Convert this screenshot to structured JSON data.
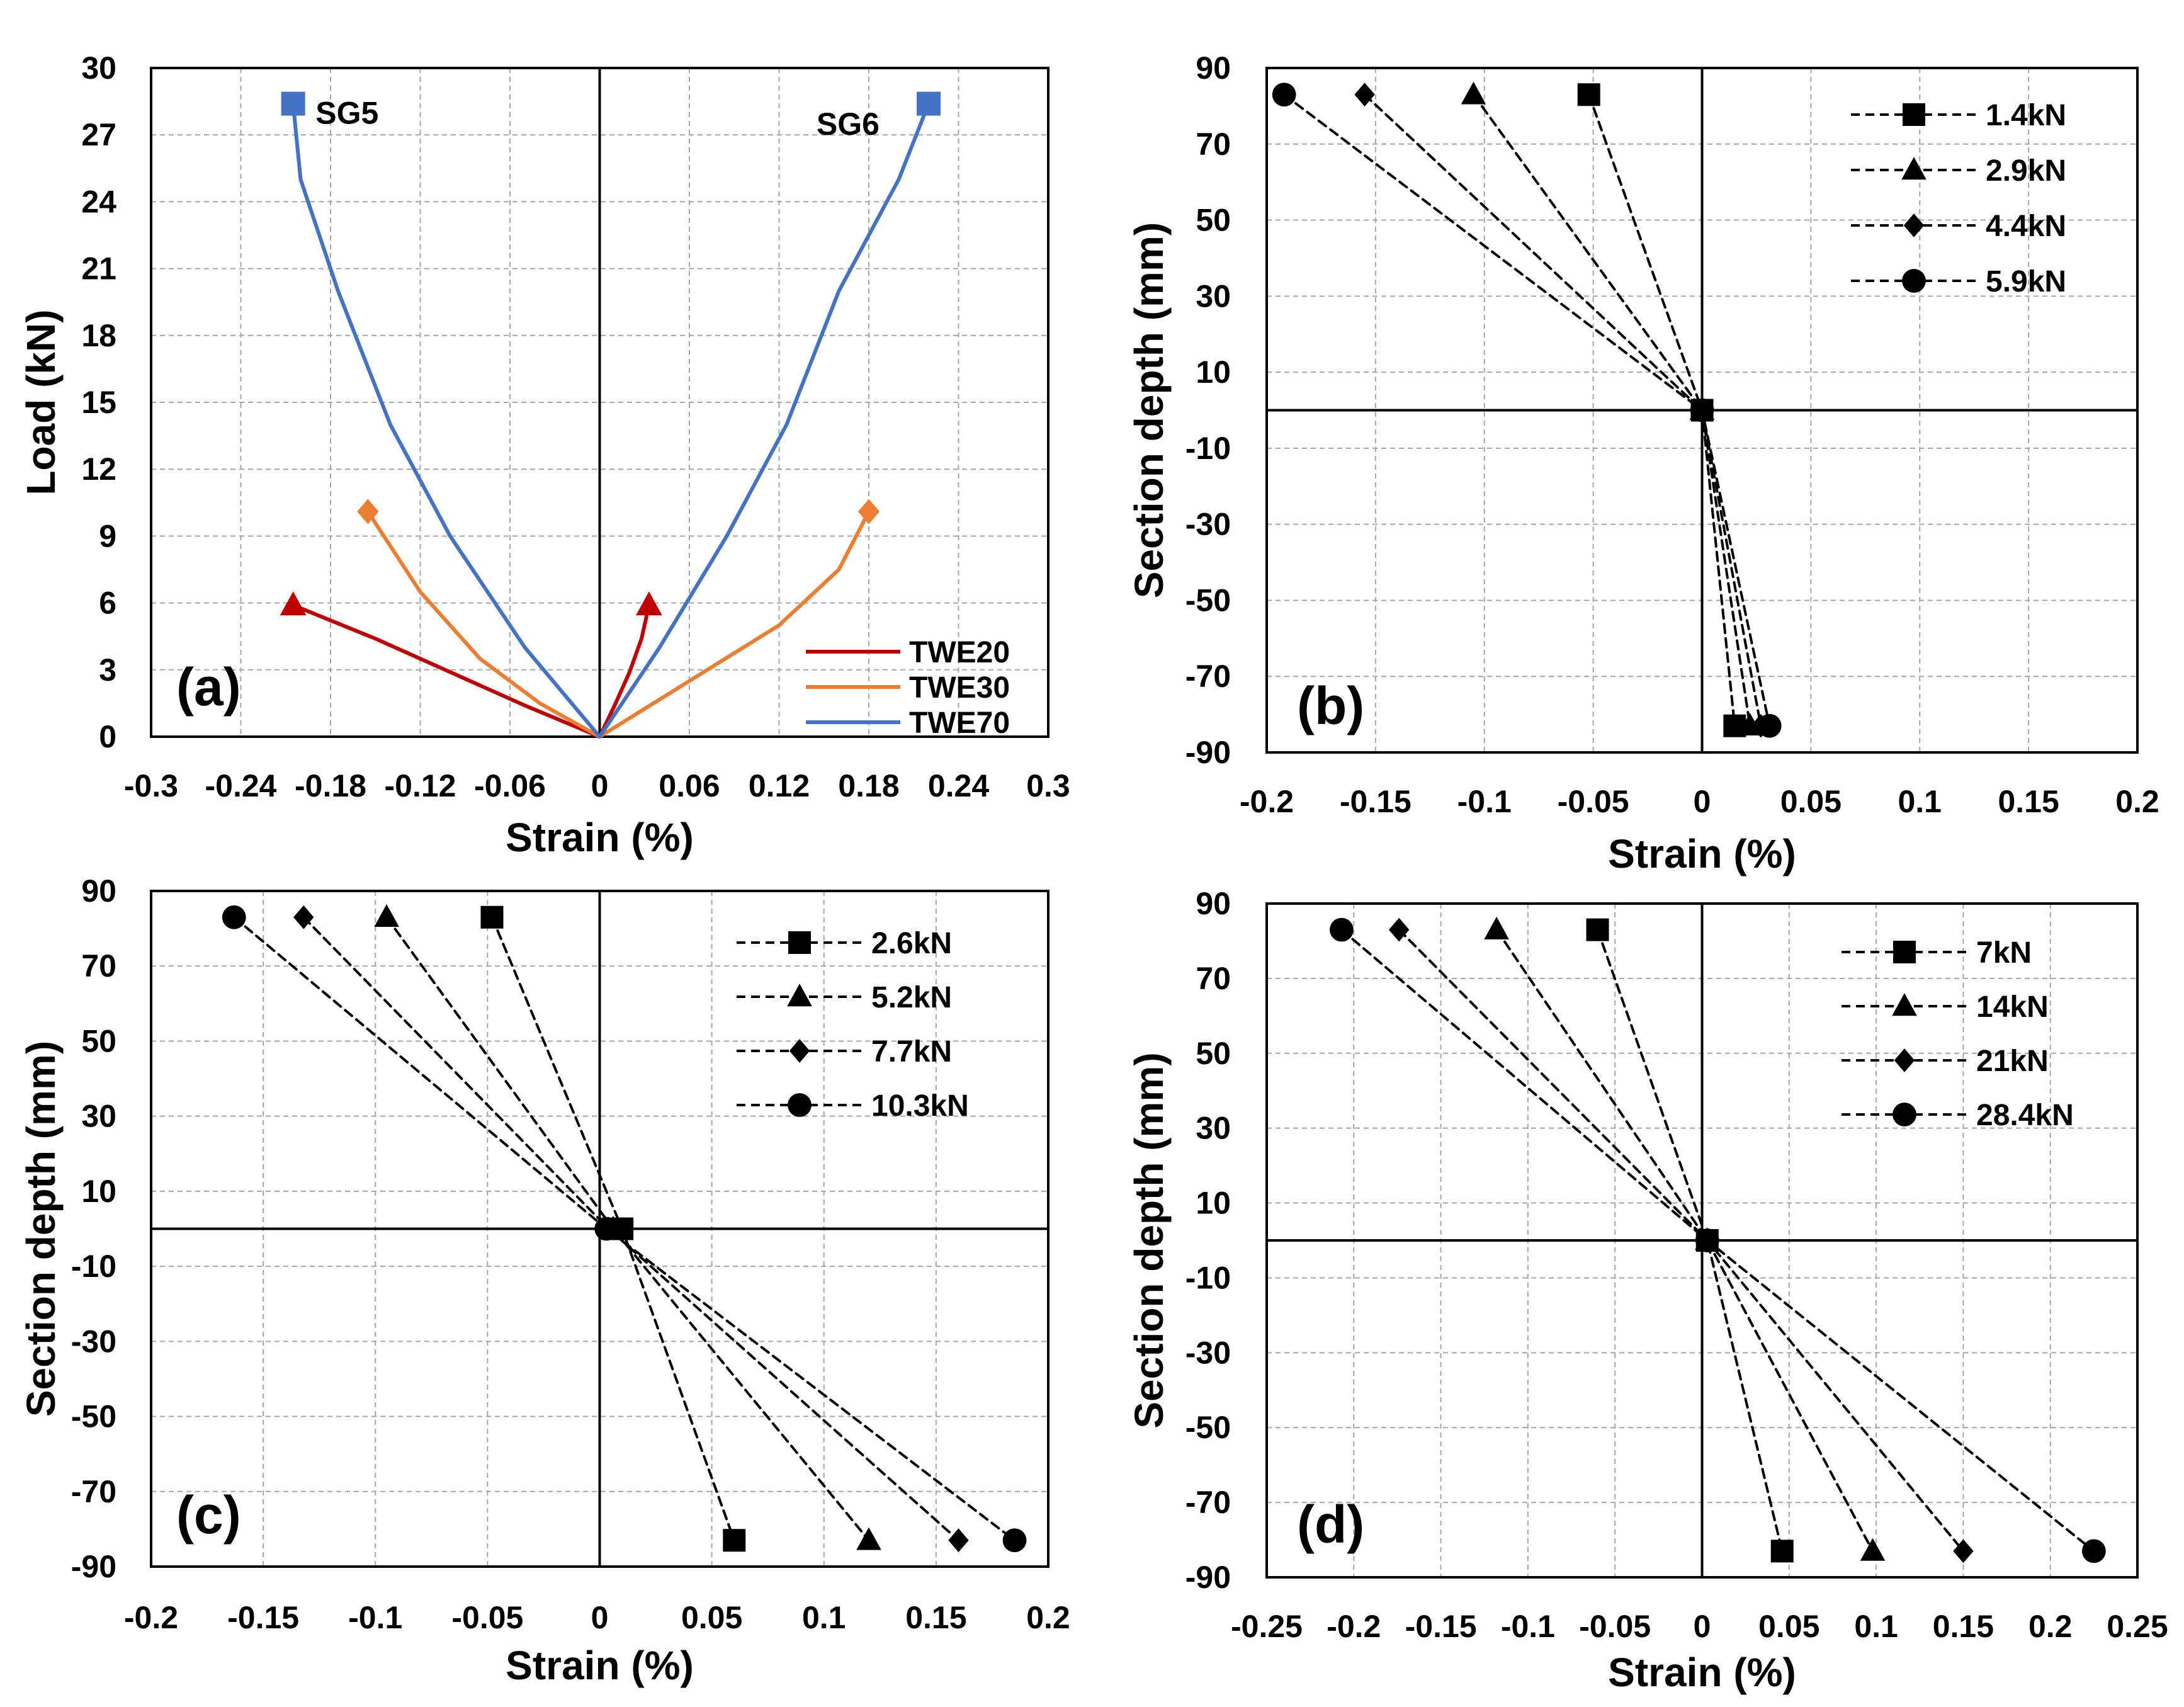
{
  "chart_data": [
    {
      "id": "a",
      "type": "line",
      "panel_label": "(a)",
      "xlabel": "Strain (%)",
      "ylabel": "Load (kN)",
      "xlim": [
        -0.3,
        0.3
      ],
      "ylim": [
        0,
        30
      ],
      "xticks": [
        -0.3,
        -0.24,
        -0.18,
        -0.12,
        -0.06,
        0,
        0.06,
        0.12,
        0.18,
        0.24,
        0.3
      ],
      "xtick_labels": [
        "-0.3",
        "-0.24",
        "-0.18",
        "-0.12",
        "-0.06",
        "0",
        "0.06",
        "0.12",
        "0.18",
        "0.24",
        "0.3"
      ],
      "yticks": [
        0,
        3,
        6,
        9,
        12,
        15,
        18,
        21,
        24,
        27,
        30
      ],
      "ytick_labels": [
        "0",
        "3",
        "6",
        "9",
        "12",
        "15",
        "18",
        "21",
        "24",
        "27",
        "30"
      ],
      "grid": true,
      "legend_position": "bottom-right",
      "legend_style": "line",
      "annotations": [
        {
          "text": "SG5",
          "x": -0.19,
          "y": 27.5
        },
        {
          "text": "SG6",
          "x": 0.145,
          "y": 27
        }
      ],
      "series": [
        {
          "name": "TWE20",
          "legend": true,
          "color": "#c00000",
          "marker": "triangle",
          "dashed": false,
          "end_marker_only": true,
          "points": [
            [
              0,
              0
            ],
            [
              -0.05,
              1.4
            ],
            [
              -0.1,
              2.9
            ],
            [
              -0.15,
              4.4
            ],
            [
              -0.205,
              5.9
            ]
          ]
        },
        {
          "name": "TWE20-SG6",
          "legend": false,
          "color": "#c00000",
          "marker": "triangle",
          "dashed": false,
          "end_marker_only": true,
          "points": [
            [
              0,
              0
            ],
            [
              0.01,
              1.4
            ],
            [
              0.02,
              2.9
            ],
            [
              0.028,
              4.4
            ],
            [
              0.033,
              5.9
            ]
          ]
        },
        {
          "name": "TWE30",
          "legend": true,
          "color": "#ed7d31",
          "marker": "diamond",
          "dashed": false,
          "end_marker_only": true,
          "points": [
            [
              0,
              0
            ],
            [
              -0.04,
              1.5
            ],
            [
              -0.08,
              3.5
            ],
            [
              -0.12,
              6.5
            ],
            [
              -0.155,
              10.1
            ]
          ]
        },
        {
          "name": "TWE30-SG6",
          "legend": false,
          "color": "#ed7d31",
          "marker": "diamond",
          "dashed": false,
          "end_marker_only": true,
          "points": [
            [
              0,
              0
            ],
            [
              0.06,
              2.5
            ],
            [
              0.12,
              5.0
            ],
            [
              0.16,
              7.5
            ],
            [
              0.18,
              10.1
            ]
          ]
        },
        {
          "name": "TWE70",
          "legend": true,
          "color": "#4472c4",
          "marker": "square",
          "dashed": false,
          "end_marker_only": true,
          "points": [
            [
              0,
              0
            ],
            [
              -0.05,
              4
            ],
            [
              -0.1,
              9
            ],
            [
              -0.14,
              14
            ],
            [
              -0.175,
              20
            ],
            [
              -0.2,
              25
            ],
            [
              -0.205,
              28.4
            ]
          ]
        },
        {
          "name": "TWE70-SG6",
          "legend": false,
          "color": "#4472c4",
          "marker": "square",
          "dashed": false,
          "end_marker_only": true,
          "points": [
            [
              0,
              0
            ],
            [
              0.04,
              4
            ],
            [
              0.085,
              9
            ],
            [
              0.125,
              14
            ],
            [
              0.16,
              20
            ],
            [
              0.2,
              25
            ],
            [
              0.22,
              28.4
            ]
          ]
        }
      ]
    },
    {
      "id": "b",
      "type": "line",
      "panel_label": "(b)",
      "xlabel": "Strain (%)",
      "ylabel": "Section depth (mm)",
      "xlim": [
        -0.2,
        0.2
      ],
      "ylim": [
        -90,
        90
      ],
      "xticks": [
        -0.2,
        -0.15,
        -0.1,
        -0.05,
        0,
        0.05,
        0.1,
        0.15,
        0.2
      ],
      "xtick_labels": [
        "-0.2",
        "-0.15",
        "-0.1",
        "-0.05",
        "0",
        "0.05",
        "0.1",
        "0.15",
        "0.2"
      ],
      "yticks": [
        -90,
        -70,
        -50,
        -30,
        -10,
        10,
        30,
        50,
        70,
        90
      ],
      "ytick_labels": [
        "-90",
        "-70",
        "-50",
        "-30",
        "-10",
        "10",
        "30",
        "50",
        "70",
        "90"
      ],
      "grid": true,
      "legend_position": "top-right",
      "legend_style": "dashed-marker",
      "series": [
        {
          "name": "1.4kN",
          "legend": true,
          "color": "#000000",
          "marker": "square",
          "dashed": true,
          "points": [
            [
              -0.052,
              83
            ],
            [
              0,
              0
            ],
            [
              0.015,
              -83
            ]
          ]
        },
        {
          "name": "2.9kN",
          "legend": true,
          "color": "#000000",
          "marker": "triangle",
          "dashed": true,
          "points": [
            [
              -0.105,
              83
            ],
            [
              0,
              0
            ],
            [
              0.022,
              -83
            ]
          ]
        },
        {
          "name": "4.4kN",
          "legend": true,
          "color": "#000000",
          "marker": "diamond",
          "dashed": true,
          "points": [
            [
              -0.155,
              83
            ],
            [
              0,
              0
            ],
            [
              0.027,
              -83
            ]
          ]
        },
        {
          "name": "5.9kN",
          "legend": true,
          "color": "#000000",
          "marker": "circle",
          "dashed": true,
          "points": [
            [
              -0.192,
              83
            ],
            [
              0,
              0
            ],
            [
              0.031,
              -83
            ]
          ]
        }
      ]
    },
    {
      "id": "c",
      "type": "line",
      "panel_label": "(c)",
      "xlabel": "Strain (%)",
      "ylabel": "Section depth (mm)",
      "xlim": [
        -0.2,
        0.2
      ],
      "ylim": [
        -90,
        90
      ],
      "xticks": [
        -0.2,
        -0.15,
        -0.1,
        -0.05,
        0,
        0.05,
        0.1,
        0.15,
        0.2
      ],
      "xtick_labels": [
        "-0.2",
        "-0.15",
        "-0.1",
        "-0.05",
        "0",
        "0.05",
        "0.1",
        "0.15",
        "0.2"
      ],
      "yticks": [
        -90,
        -70,
        -50,
        -30,
        -10,
        10,
        30,
        50,
        70,
        90
      ],
      "ytick_labels": [
        "-90",
        "-70",
        "-50",
        "-30",
        "-10",
        "10",
        "30",
        "50",
        "70",
        "90"
      ],
      "grid": true,
      "legend_position": "top-right",
      "legend_style": "dashed-marker",
      "series": [
        {
          "name": "2.6kN",
          "legend": true,
          "color": "#000000",
          "marker": "square",
          "dashed": true,
          "points": [
            [
              -0.048,
              83
            ],
            [
              0.01,
              0
            ],
            [
              0.06,
              -83
            ]
          ]
        },
        {
          "name": "5.2kN",
          "legend": true,
          "color": "#000000",
          "marker": "triangle",
          "dashed": true,
          "points": [
            [
              -0.095,
              83
            ],
            [
              0.006,
              0
            ],
            [
              0.12,
              -83
            ]
          ]
        },
        {
          "name": "7.7kN",
          "legend": true,
          "color": "#000000",
          "marker": "diamond",
          "dashed": true,
          "points": [
            [
              -0.132,
              83
            ],
            [
              0.004,
              0
            ],
            [
              0.16,
              -83
            ]
          ]
        },
        {
          "name": "10.3kN",
          "legend": true,
          "color": "#000000",
          "marker": "circle",
          "dashed": true,
          "points": [
            [
              -0.163,
              83
            ],
            [
              0.003,
              0
            ],
            [
              0.185,
              -83
            ]
          ]
        }
      ]
    },
    {
      "id": "d",
      "type": "line",
      "panel_label": "(d)",
      "xlabel": "Strain (%)",
      "ylabel": "Section depth (mm)",
      "xlim": [
        -0.25,
        0.25
      ],
      "ylim": [
        -90,
        90
      ],
      "xticks": [
        -0.25,
        -0.2,
        -0.15,
        -0.1,
        -0.05,
        0,
        0.05,
        0.1,
        0.15,
        0.2,
        0.25
      ],
      "xtick_labels": [
        "-0.25",
        "-0.2",
        "-0.15",
        "-0.1",
        "-0.05",
        "0",
        "0.05",
        "0.1",
        "0.15",
        "0.2",
        "0.25"
      ],
      "yticks": [
        -90,
        -70,
        -50,
        -30,
        -10,
        10,
        30,
        50,
        70,
        90
      ],
      "ytick_labels": [
        "-90",
        "-70",
        "-50",
        "-30",
        "-10",
        "10",
        "30",
        "50",
        "70",
        "90"
      ],
      "grid": true,
      "legend_position": "top-right",
      "legend_style": "dashed-marker",
      "series": [
        {
          "name": "7kN",
          "legend": true,
          "color": "#000000",
          "marker": "square",
          "dashed": true,
          "points": [
            [
              -0.06,
              83
            ],
            [
              0.003,
              0
            ],
            [
              0.046,
              -83
            ]
          ]
        },
        {
          "name": "14kN",
          "legend": true,
          "color": "#000000",
          "marker": "triangle",
          "dashed": true,
          "points": [
            [
              -0.118,
              83
            ],
            [
              0.003,
              0
            ],
            [
              0.098,
              -83
            ]
          ]
        },
        {
          "name": "21kN",
          "legend": true,
          "color": "#000000",
          "marker": "diamond",
          "dashed": true,
          "points": [
            [
              -0.174,
              83
            ],
            [
              0.003,
              0
            ],
            [
              0.15,
              -83
            ]
          ]
        },
        {
          "name": "28.4kN",
          "legend": true,
          "color": "#000000",
          "marker": "circle",
          "dashed": true,
          "points": [
            [
              -0.207,
              83
            ],
            [
              0.003,
              0
            ],
            [
              0.225,
              -83
            ]
          ]
        }
      ]
    }
  ]
}
